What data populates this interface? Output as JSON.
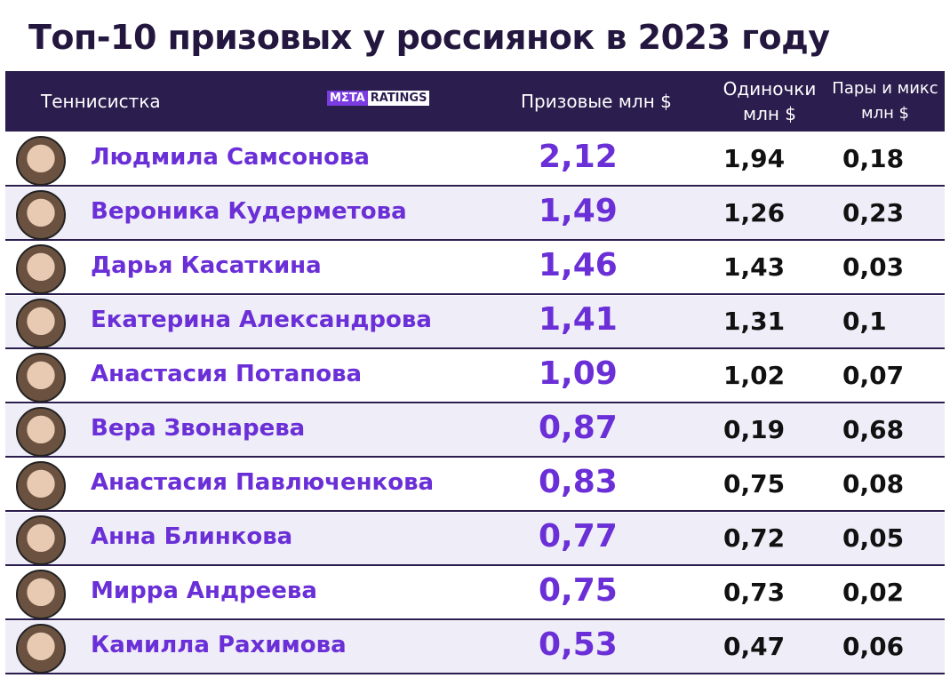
{
  "title": "Топ-10 призовых у россиянок в 2023 году",
  "logo": {
    "left": "MΣTA",
    "right": "RATINGS"
  },
  "table": {
    "columns": [
      "Теннисистка",
      "Призовые млн $",
      "Одиночки млн $",
      "Пары и микс млн $"
    ],
    "rows": [
      [
        "Людмила Самсонова",
        "2,12",
        "1,94",
        "0,18"
      ],
      [
        "Вероника Кудерметова",
        "1,49",
        "1,26",
        "0,23"
      ],
      [
        "Дарья Касаткина",
        "1,46",
        "1,43",
        "0,03"
      ],
      [
        "Екатерина Александрова",
        "1,41",
        "1,31",
        "0,1"
      ],
      [
        "Анастасия Потапова",
        "1,09",
        "1,02",
        "0,07"
      ],
      [
        "Вера Звонарева",
        "0,87",
        "0,19",
        "0,68"
      ],
      [
        "Анастасия Павлюченкова",
        "0,83",
        "0,75",
        "0,08"
      ],
      [
        "Анна Блинкова",
        "0,77",
        "0,72",
        "0,05"
      ],
      [
        "Мирра Андреева",
        "0,75",
        "0,73",
        "0,02"
      ],
      [
        "Камилла Рахимова",
        "0,53",
        "0,47",
        "0,06"
      ]
    ]
  }
}
